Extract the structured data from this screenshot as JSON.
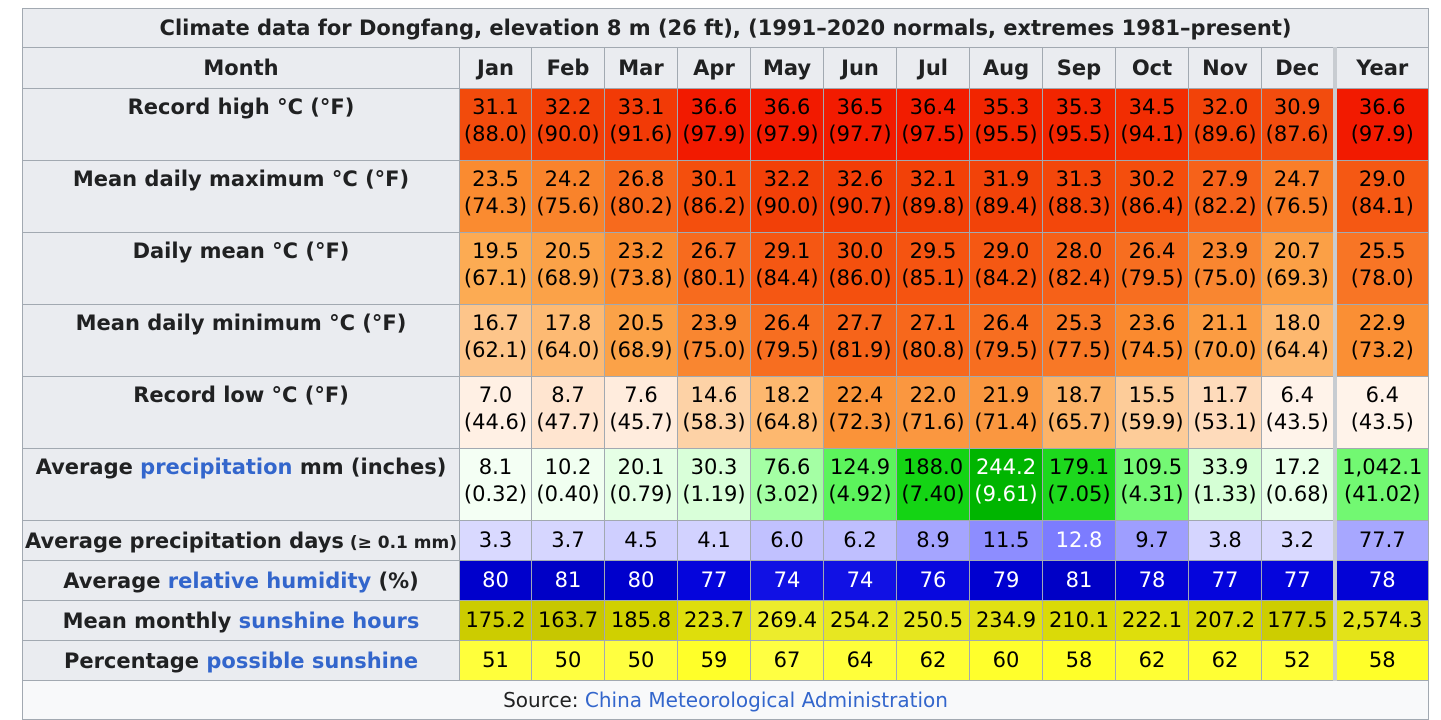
{
  "caption": "Climate data for Dongfang, elevation 8 m (26 ft), (1991–2020 normals, extremes 1981–present)",
  "header": {
    "month_label": "Month",
    "months": [
      "Jan",
      "Feb",
      "Mar",
      "Apr",
      "May",
      "Jun",
      "Jul",
      "Aug",
      "Sep",
      "Oct",
      "Nov",
      "Dec"
    ],
    "year_label": "Year"
  },
  "rows": [
    {
      "label": "Record high °C (°F)",
      "cells": [
        {
          "c": "31.1",
          "f": "(88.0)",
          "bg": "#f24b0c"
        },
        {
          "c": "32.2",
          "f": "(90.0)",
          "bg": "#f24008"
        },
        {
          "c": "33.1",
          "f": "(91.6)",
          "bg": "#f23a06"
        },
        {
          "c": "36.6",
          "f": "(97.9)",
          "bg": "#f21a00"
        },
        {
          "c": "36.6",
          "f": "(97.9)",
          "bg": "#f21a00"
        },
        {
          "c": "36.5",
          "f": "(97.7)",
          "bg": "#f21b00"
        },
        {
          "c": "36.4",
          "f": "(97.5)",
          "bg": "#f21c00"
        },
        {
          "c": "35.3",
          "f": "(95.5)",
          "bg": "#f22500"
        },
        {
          "c": "35.3",
          "f": "(95.5)",
          "bg": "#f22500"
        },
        {
          "c": "34.5",
          "f": "(94.1)",
          "bg": "#f22d02"
        },
        {
          "c": "32.0",
          "f": "(89.6)",
          "bg": "#f24309"
        },
        {
          "c": "30.9",
          "f": "(87.6)",
          "bg": "#f24c0e"
        },
        {
          "c": "36.6",
          "f": "(97.9)",
          "bg": "#f21a00"
        }
      ]
    },
    {
      "label": "Mean daily maximum °C (°F)",
      "cells": [
        {
          "c": "23.5",
          "f": "(74.3)",
          "bg": "#fa8b30"
        },
        {
          "c": "24.2",
          "f": "(75.6)",
          "bg": "#f9832b"
        },
        {
          "c": "26.8",
          "f": "(80.2)",
          "bg": "#f76a1d"
        },
        {
          "c": "30.1",
          "f": "(86.2)",
          "bg": "#f44f0d"
        },
        {
          "c": "32.2",
          "f": "(90.0)",
          "bg": "#f24008"
        },
        {
          "c": "32.6",
          "f": "(90.7)",
          "bg": "#f23d07"
        },
        {
          "c": "32.1",
          "f": "(89.8)",
          "bg": "#f24108"
        },
        {
          "c": "31.9",
          "f": "(89.4)",
          "bg": "#f24309"
        },
        {
          "c": "31.3",
          "f": "(88.3)",
          "bg": "#f3470b"
        },
        {
          "c": "30.2",
          "f": "(86.4)",
          "bg": "#f44e0d"
        },
        {
          "c": "27.9",
          "f": "(82.2)",
          "bg": "#f6621a"
        },
        {
          "c": "24.7",
          "f": "(76.5)",
          "bg": "#f97e28"
        },
        {
          "c": "29.0",
          "f": "(84.1)",
          "bg": "#f55813"
        }
      ]
    },
    {
      "label": "Daily mean °C (°F)",
      "cells": [
        {
          "c": "19.5",
          "f": "(67.1)",
          "bg": "#fcab53"
        },
        {
          "c": "20.5",
          "f": "(68.9)",
          "bg": "#fba248"
        },
        {
          "c": "23.2",
          "f": "(73.8)",
          "bg": "#fa8d31"
        },
        {
          "c": "26.7",
          "f": "(80.1)",
          "bg": "#f76b1e"
        },
        {
          "c": "29.1",
          "f": "(84.4)",
          "bg": "#f55713"
        },
        {
          "c": "30.0",
          "f": "(86.0)",
          "bg": "#f4500e"
        },
        {
          "c": "29.5",
          "f": "(85.1)",
          "bg": "#f55411"
        },
        {
          "c": "29.0",
          "f": "(84.2)",
          "bg": "#f55813"
        },
        {
          "c": "28.0",
          "f": "(82.4)",
          "bg": "#f66118"
        },
        {
          "c": "26.4",
          "f": "(79.5)",
          "bg": "#f76e20"
        },
        {
          "c": "23.9",
          "f": "(75.0)",
          "bg": "#f98630"
        },
        {
          "c": "20.7",
          "f": "(69.3)",
          "bg": "#fba046"
        },
        {
          "c": "25.5",
          "f": "(78.0)",
          "bg": "#f87525"
        }
      ]
    },
    {
      "label": "Mean daily minimum °C (°F)",
      "cells": [
        {
          "c": "16.7",
          "f": "(62.1)",
          "bg": "#fdc58a"
        },
        {
          "c": "17.8",
          "f": "(64.0)",
          "bg": "#fdba73"
        },
        {
          "c": "20.5",
          "f": "(68.9)",
          "bg": "#fba248"
        },
        {
          "c": "23.9",
          "f": "(75.0)",
          "bg": "#f98630"
        },
        {
          "c": "26.4",
          "f": "(79.5)",
          "bg": "#f76e20"
        },
        {
          "c": "27.7",
          "f": "(81.9)",
          "bg": "#f6641a"
        },
        {
          "c": "27.1",
          "f": "(80.8)",
          "bg": "#f7681c"
        },
        {
          "c": "26.4",
          "f": "(79.5)",
          "bg": "#f76e20"
        },
        {
          "c": "25.3",
          "f": "(77.5)",
          "bg": "#f87826"
        },
        {
          "c": "23.6",
          "f": "(74.5)",
          "bg": "#fa8a2f"
        },
        {
          "c": "21.1",
          "f": "(70.0)",
          "bg": "#fb9c42"
        },
        {
          "c": "18.0",
          "f": "(64.4)",
          "bg": "#fdb86f"
        },
        {
          "c": "22.9",
          "f": "(73.2)",
          "bg": "#fa8f34"
        }
      ]
    },
    {
      "label": "Record low °C (°F)",
      "cells": [
        {
          "c": "7.0",
          "f": "(44.6)",
          "bg": "#fff0e4"
        },
        {
          "c": "8.7",
          "f": "(47.7)",
          "bg": "#ffe5d0"
        },
        {
          "c": "7.6",
          "f": "(45.7)",
          "bg": "#ffecdd"
        },
        {
          "c": "14.6",
          "f": "(58.3)",
          "bg": "#fdd2a6"
        },
        {
          "c": "18.2",
          "f": "(64.8)",
          "bg": "#fdb86f"
        },
        {
          "c": "22.4",
          "f": "(72.3)",
          "bg": "#fa9339"
        },
        {
          "c": "22.0",
          "f": "(71.6)",
          "bg": "#fa9740"
        },
        {
          "c": "21.9",
          "f": "(71.4)",
          "bg": "#fa9740"
        },
        {
          "c": "18.7",
          "f": "(65.7)",
          "bg": "#fcb368"
        },
        {
          "c": "15.5",
          "f": "(59.9)",
          "bg": "#fdcc99"
        },
        {
          "c": "11.7",
          "f": "(53.1)",
          "bg": "#fedbbb"
        },
        {
          "c": "6.4",
          "f": "(43.5)",
          "bg": "#fff3ea"
        },
        {
          "c": "6.4",
          "f": "(43.5)",
          "bg": "#fff3ea"
        }
      ]
    },
    {
      "label_pre": "Average ",
      "label_link": "precipitation",
      "label_post": " mm (inches)",
      "cells": [
        {
          "c": "8.1",
          "f": "(0.32)",
          "bg": "#f4fff4"
        },
        {
          "c": "10.2",
          "f": "(0.40)",
          "bg": "#f1fff1"
        },
        {
          "c": "20.1",
          "f": "(0.79)",
          "bg": "#e5ffe5"
        },
        {
          "c": "30.3",
          "f": "(1.19)",
          "bg": "#d9ffd9"
        },
        {
          "c": "76.6",
          "f": "(3.02)",
          "bg": "#a4ffa4"
        },
        {
          "c": "124.9",
          "f": "(4.92)",
          "bg": "#5cf45c"
        },
        {
          "c": "188.0",
          "f": "(7.40)",
          "bg": "#14d414"
        },
        {
          "c": "244.2",
          "f": "(9.61)",
          "bg": "#00b500",
          "white": true
        },
        {
          "c": "179.1",
          "f": "(7.05)",
          "bg": "#1dd81d"
        },
        {
          "c": "109.5",
          "f": "(4.31)",
          "bg": "#74f874"
        },
        {
          "c": "33.9",
          "f": "(1.33)",
          "bg": "#d5ffd5"
        },
        {
          "c": "17.2",
          "f": "(0.68)",
          "bg": "#e9ffe9"
        },
        {
          "c": "1,042.1",
          "f": "(41.02)",
          "bg": "#72f872"
        }
      ]
    }
  ],
  "precip_days": {
    "label": "Average precipitation days",
    "label_small": " (≥ 0.1 mm)",
    "values": [
      "3.3",
      "3.7",
      "4.5",
      "4.1",
      "6.0",
      "6.2",
      "8.9",
      "11.5",
      "12.8",
      "9.7",
      "3.8",
      "3.2",
      "77.7"
    ],
    "bgs": [
      "#d9d9ff",
      "#d6d6ff",
      "#cfcfff",
      "#d2d2ff",
      "#c1c1ff",
      "#bfbfff",
      "#a5a5ff",
      "#8d8dff",
      "#7c7cff",
      "#9e9eff",
      "#d5d5ff",
      "#d9d9ff",
      "#a7a7ff"
    ],
    "white": [
      false,
      false,
      false,
      false,
      false,
      false,
      false,
      false,
      true,
      false,
      false,
      false,
      false
    ]
  },
  "humidity": {
    "label_pre": "Average ",
    "label_link": "relative humidity",
    "label_post": " (%)",
    "values": [
      "80",
      "81",
      "80",
      "77",
      "74",
      "74",
      "76",
      "79",
      "81",
      "78",
      "77",
      "77",
      "78"
    ],
    "bgs": [
      "#0000cc",
      "#0000c6",
      "#0000cc",
      "#0505dc",
      "#1111e4",
      "#1111e4",
      "#0808de",
      "#0000d0",
      "#0000c6",
      "#0303d6",
      "#0505dc",
      "#0505dc",
      "#0303d6"
    ]
  },
  "sunshine_hours": {
    "label_pre": "Mean monthly ",
    "label_link": "sunshine hours",
    "label_post": "",
    "values": [
      "175.2",
      "163.7",
      "185.8",
      "223.7",
      "269.4",
      "254.2",
      "250.5",
      "234.9",
      "210.1",
      "222.1",
      "207.2",
      "177.5",
      "2,574.3"
    ],
    "bgs": [
      "#cccc00",
      "#c7c700",
      "#d0d000",
      "#dede0c",
      "#ecec2c",
      "#e7e721",
      "#e6e61f",
      "#e1e114",
      "#dada08",
      "#dede0c",
      "#d9d907",
      "#cdcd00",
      "#e3e318"
    ]
  },
  "possible_sunshine": {
    "label_pre": "Percentage ",
    "label_link": "possible sunshine",
    "label_post": "",
    "values": [
      "51",
      "50",
      "50",
      "59",
      "67",
      "64",
      "62",
      "60",
      "58",
      "62",
      "62",
      "52",
      "58"
    ],
    "bgs": [
      "#ffff3b",
      "#ffff40",
      "#ffff40",
      "#ffff29",
      "#ffff42",
      "#ffff3a",
      "#ffff34",
      "#ffff2c",
      "#ffff29",
      "#ffff34",
      "#ffff34",
      "#ffff38",
      "#ffff29"
    ]
  },
  "source": {
    "label": "Source: ",
    "link": "China Meteorological Administration"
  }
}
